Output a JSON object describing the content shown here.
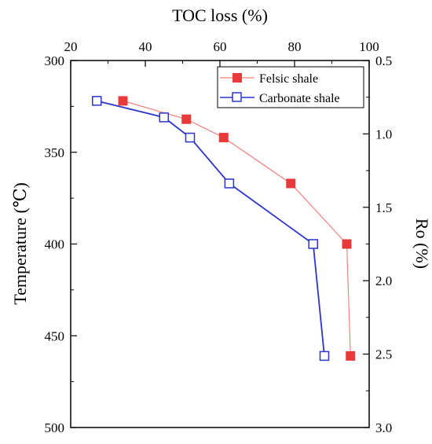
{
  "chart_data": {
    "type": "line",
    "x_label": "TOC loss (%)",
    "x_axis_position": "top",
    "x_range": [
      20,
      100
    ],
    "x_ticks": [
      20,
      40,
      60,
      80,
      100
    ],
    "y_label": "Temperature (℃)",
    "y_range": [
      300,
      500
    ],
    "y_reversed": true,
    "y_ticks": [
      300,
      350,
      400,
      450,
      500
    ],
    "y2_label": "Ro (%)",
    "y2_range": [
      0.5,
      3.0
    ],
    "y2_reversed": true,
    "y2_ticks": [
      "0.5",
      "1.0",
      "1.5",
      "2.0",
      "2.5",
      "3.0"
    ],
    "grid": false,
    "legend_position": "top-right",
    "series": [
      {
        "name": "Felsic shale",
        "color": "#e83a3a",
        "line_color": "#f08080",
        "marker": "filled-square",
        "points": [
          {
            "x": 34,
            "y": 322
          },
          {
            "x": 51,
            "y": 332
          },
          {
            "x": 61,
            "y": 342
          },
          {
            "x": 79,
            "y": 367
          },
          {
            "x": 94,
            "y": 400
          },
          {
            "x": 95,
            "y": 461
          }
        ]
      },
      {
        "name": "Carbonate shale",
        "color": "#2b35c8",
        "line_color": "#2b35c8",
        "marker": "open-square",
        "points": [
          {
            "x": 27,
            "y": 322
          },
          {
            "x": 45,
            "y": 331
          },
          {
            "x": 52,
            "y": 342
          },
          {
            "x": 62.5,
            "y": 367
          },
          {
            "x": 85,
            "y": 400
          },
          {
            "x": 88,
            "y": 461
          }
        ]
      }
    ]
  }
}
